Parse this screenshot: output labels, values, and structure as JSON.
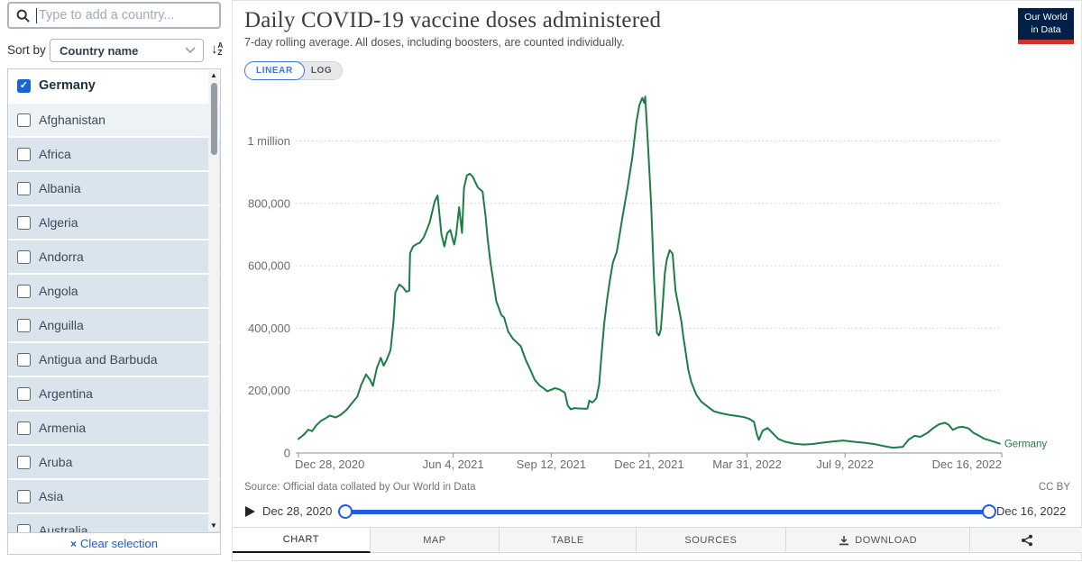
{
  "header": {
    "title": "Daily COVID-19 vaccine doses administered",
    "subtitle": "7-day rolling average. All doses, including boosters, are counted individually.",
    "logo": {
      "line1": "Our World",
      "line2": "in Data"
    }
  },
  "scale_toggle": {
    "options": [
      "LINEAR",
      "LOG"
    ],
    "active": "LINEAR"
  },
  "sidebar": {
    "search": {
      "placeholder": "Type to add a country..."
    },
    "sort": {
      "label": "Sort by",
      "selected": "Country name"
    },
    "selected_country": "Germany",
    "countries": [
      "Afghanistan",
      "Africa",
      "Albania",
      "Algeria",
      "Andorra",
      "Angola",
      "Anguilla",
      "Antigua and Barbuda",
      "Argentina",
      "Armenia",
      "Aruba",
      "Asia",
      "Australia"
    ],
    "clear_icon": "×",
    "clear_label": "Clear selection"
  },
  "source": {
    "label": "Source: Official data collated by Our World in Data",
    "license": "CC BY"
  },
  "timeline": {
    "start": "Dec 28, 2020",
    "end": "Dec 16, 2022"
  },
  "footer_tabs": [
    {
      "label": "CHART",
      "active": true
    },
    {
      "label": "MAP",
      "active": false
    },
    {
      "label": "TABLE",
      "active": false
    },
    {
      "label": "SOURCES",
      "active": false
    },
    {
      "label": "DOWNLOAD",
      "active": false,
      "icon": "download"
    },
    {
      "label": "",
      "active": false,
      "icon": "share"
    }
  ],
  "colors": {
    "series_green": "#1e7c45",
    "timeline_blue": "#2458e6",
    "checkbox_blue": "#1565d8",
    "link_blue": "#1d5cd6",
    "logo_navy": "#002147",
    "logo_red": "#d0332a",
    "grid_gray": "#cfcfcf",
    "axis_gray": "#8f8f8f"
  },
  "chart_data": {
    "type": "line",
    "title": "Daily COVID-19 vaccine doses administered",
    "subtitle": "7-day rolling average. All doses, including boosters, are counted individually.",
    "grid": "dotted horizontal",
    "legend_position": "end-of-line label",
    "x_unit": "days since 2020-12-28",
    "x_axis": {
      "range": [
        0,
        718
      ],
      "ticks": [
        {
          "t": 0,
          "label": "Dec 28, 2020"
        },
        {
          "t": 158,
          "label": "Jun 4, 2021"
        },
        {
          "t": 258,
          "label": "Sep 12, 2021"
        },
        {
          "t": 358,
          "label": "Dec 21, 2021"
        },
        {
          "t": 458,
          "label": "Mar 31, 2022"
        },
        {
          "t": 558,
          "label": "Jul 9, 2022"
        },
        {
          "t": 718,
          "label": "Dec 16, 2022"
        }
      ]
    },
    "y_axis": {
      "range": [
        0,
        1150000
      ],
      "ticks": [
        {
          "v": 0,
          "label": "0"
        },
        {
          "v": 200000,
          "label": "200,000"
        },
        {
          "v": 400000,
          "label": "400,000"
        },
        {
          "v": 600000,
          "label": "600,000"
        },
        {
          "v": 800000,
          "label": "800,000"
        },
        {
          "v": 1000000,
          "label": "1 million"
        }
      ]
    },
    "series": [
      {
        "name": "Germany",
        "color": "#1e7c45",
        "points": [
          [
            0,
            45000
          ],
          [
            6,
            60000
          ],
          [
            10,
            75000
          ],
          [
            14,
            70000
          ],
          [
            18,
            88000
          ],
          [
            23,
            103000
          ],
          [
            28,
            112000
          ],
          [
            32,
            120000
          ],
          [
            38,
            114000
          ],
          [
            43,
            122000
          ],
          [
            49,
            138000
          ],
          [
            54,
            158000
          ],
          [
            60,
            180000
          ],
          [
            64,
            218000
          ],
          [
            69,
            252000
          ],
          [
            73,
            235000
          ],
          [
            76,
            215000
          ],
          [
            80,
            272000
          ],
          [
            84,
            305000
          ],
          [
            87,
            280000
          ],
          [
            90,
            298000
          ],
          [
            94,
            330000
          ],
          [
            97,
            420000
          ],
          [
            99,
            515000
          ],
          [
            103,
            540000
          ],
          [
            107,
            530000
          ],
          [
            110,
            517000
          ],
          [
            113,
            520000
          ],
          [
            114,
            640000
          ],
          [
            117,
            662000
          ],
          [
            121,
            670000
          ],
          [
            124,
            674000
          ],
          [
            128,
            692000
          ],
          [
            132,
            723000
          ],
          [
            134,
            740000
          ],
          [
            136,
            765000
          ],
          [
            139,
            805000
          ],
          [
            142,
            825000
          ],
          [
            146,
            700000
          ],
          [
            149,
            662000
          ],
          [
            152,
            705000
          ],
          [
            155,
            715000
          ],
          [
            157,
            690000
          ],
          [
            159,
            668000
          ],
          [
            161,
            700000
          ],
          [
            164,
            788000
          ],
          [
            167,
            705000
          ],
          [
            169,
            850000
          ],
          [
            172,
            890000
          ],
          [
            175,
            895000
          ],
          [
            178,
            885000
          ],
          [
            180,
            872000
          ],
          [
            183,
            852000
          ],
          [
            186,
            843000
          ],
          [
            188,
            838000
          ],
          [
            191,
            760000
          ],
          [
            193,
            690000
          ],
          [
            196,
            612000
          ],
          [
            199,
            549000
          ],
          [
            202,
            487000
          ],
          [
            207,
            443000
          ],
          [
            210,
            434000
          ],
          [
            214,
            390000
          ],
          [
            219,
            366000
          ],
          [
            222,
            357000
          ],
          [
            227,
            342000
          ],
          [
            232,
            299000
          ],
          [
            237,
            265000
          ],
          [
            241,
            236000
          ],
          [
            246,
            217000
          ],
          [
            250,
            208000
          ],
          [
            254,
            198000
          ],
          [
            258,
            203000
          ],
          [
            262,
            208000
          ],
          [
            267,
            203000
          ],
          [
            272,
            193000
          ],
          [
            275,
            152000
          ],
          [
            278,
            140000
          ],
          [
            282,
            144000
          ],
          [
            286,
            143000
          ],
          [
            291,
            142000
          ],
          [
            295,
            142000
          ],
          [
            297,
            168000
          ],
          [
            300,
            162000
          ],
          [
            304,
            175000
          ],
          [
            307,
            220000
          ],
          [
            309,
            300000
          ],
          [
            312,
            410000
          ],
          [
            315,
            490000
          ],
          [
            318,
            555000
          ],
          [
            321,
            610000
          ],
          [
            325,
            645000
          ],
          [
            331,
            760000
          ],
          [
            336,
            850000
          ],
          [
            341,
            950000
          ],
          [
            345,
            1060000
          ],
          [
            348,
            1115000
          ],
          [
            351,
            1138000
          ],
          [
            353,
            1122000
          ],
          [
            354,
            1142000
          ],
          [
            357,
            980000
          ],
          [
            360,
            800000
          ],
          [
            363,
            560000
          ],
          [
            365,
            440000
          ],
          [
            366,
            385000
          ],
          [
            368,
            377000
          ],
          [
            370,
            395000
          ],
          [
            372,
            480000
          ],
          [
            374,
            575000
          ],
          [
            376,
            620000
          ],
          [
            379,
            650000
          ],
          [
            382,
            638000
          ],
          [
            385,
            520000
          ],
          [
            388,
            470000
          ],
          [
            391,
            420000
          ],
          [
            393,
            372000
          ],
          [
            398,
            266000
          ],
          [
            401,
            228000
          ],
          [
            406,
            188000
          ],
          [
            411,
            165000
          ],
          [
            418,
            148000
          ],
          [
            424,
            134000
          ],
          [
            432,
            127000
          ],
          [
            440,
            122000
          ],
          [
            447,
            119000
          ],
          [
            455,
            115000
          ],
          [
            460,
            110000
          ],
          [
            465,
            100000
          ],
          [
            468,
            60000
          ],
          [
            470,
            42000
          ],
          [
            474,
            72000
          ],
          [
            479,
            80000
          ],
          [
            484,
            64000
          ],
          [
            490,
            45000
          ],
          [
            497,
            36000
          ],
          [
            506,
            30000
          ],
          [
            515,
            27000
          ],
          [
            525,
            29000
          ],
          [
            534,
            33000
          ],
          [
            545,
            37000
          ],
          [
            556,
            40000
          ],
          [
            567,
            36000
          ],
          [
            578,
            33000
          ],
          [
            589,
            28000
          ],
          [
            598,
            22000
          ],
          [
            607,
            17000
          ],
          [
            617,
            20000
          ],
          [
            623,
            43000
          ],
          [
            629,
            55000
          ],
          [
            635,
            52000
          ],
          [
            642,
            64000
          ],
          [
            648,
            80000
          ],
          [
            654,
            92000
          ],
          [
            660,
            97000
          ],
          [
            664,
            90000
          ],
          [
            668,
            74000
          ],
          [
            673,
            82000
          ],
          [
            678,
            84000
          ],
          [
            684,
            79000
          ],
          [
            689,
            65000
          ],
          [
            695,
            55000
          ],
          [
            700,
            46000
          ],
          [
            706,
            40000
          ],
          [
            712,
            34000
          ],
          [
            716,
            30000
          ]
        ]
      }
    ]
  }
}
